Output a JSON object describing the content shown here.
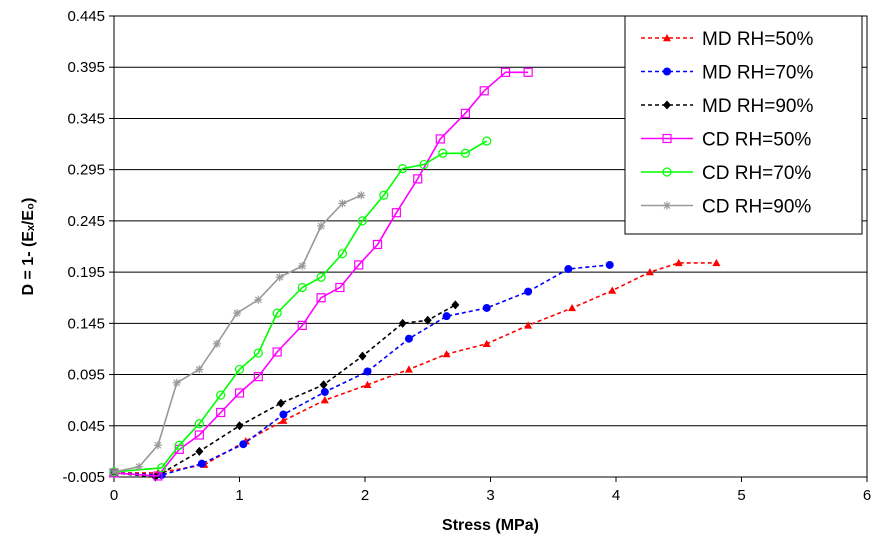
{
  "chart_data": {
    "type": "line",
    "xlabel": "Stress (MPa)",
    "ylabel": "D = 1- (Eₓ/E₀)",
    "xlim": [
      0,
      6
    ],
    "ylim": [
      -0.005,
      0.445
    ],
    "x_ticks": [
      "0",
      "1",
      "2",
      "3",
      "4",
      "5",
      "6"
    ],
    "y_ticks": [
      "-0.005",
      "0.045",
      "0.095",
      "0.145",
      "0.195",
      "0.245",
      "0.295",
      "0.345",
      "0.395",
      "0.445"
    ],
    "grid": "horizontal",
    "legend_position": "top-right",
    "series": [
      {
        "name": "MD RH=50%",
        "color": "#ff0000",
        "marker": "triangle",
        "line": "dashed",
        "x": [
          0.0,
          0.35,
          0.72,
          1.05,
          1.35,
          1.68,
          2.02,
          2.35,
          2.65,
          2.97,
          3.3,
          3.65,
          3.97,
          4.27,
          4.5,
          4.8
        ],
        "y": [
          -0.001,
          -0.001,
          0.007,
          0.03,
          0.05,
          0.07,
          0.085,
          0.1,
          0.115,
          0.125,
          0.143,
          0.16,
          0.177,
          0.195,
          0.204,
          0.204
        ]
      },
      {
        "name": "MD RH=70%",
        "color": "#0000ff",
        "marker": "circle",
        "line": "dashed",
        "x": [
          0.0,
          0.38,
          0.7,
          1.03,
          1.35,
          1.68,
          2.02,
          2.35,
          2.65,
          2.97,
          3.3,
          3.62,
          3.95
        ],
        "y": [
          -0.001,
          -0.003,
          0.008,
          0.027,
          0.056,
          0.078,
          0.098,
          0.13,
          0.152,
          0.16,
          0.176,
          0.198,
          0.202
        ]
      },
      {
        "name": "MD RH=90%",
        "color": "#000000",
        "marker": "diamond",
        "line": "dashed",
        "x": [
          0.0,
          0.33,
          0.68,
          1.0,
          1.33,
          1.67,
          1.98,
          2.3,
          2.5,
          2.72
        ],
        "y": [
          -0.001,
          -0.005,
          0.02,
          0.045,
          0.067,
          0.085,
          0.113,
          0.145,
          0.148,
          0.163
        ]
      },
      {
        "name": "CD RH=50%",
        "color": "#ff00ff",
        "marker": "square",
        "line": "solid",
        "x": [
          0.0,
          0.35,
          0.52,
          0.68,
          0.85,
          1.0,
          1.15,
          1.3,
          1.5,
          1.65,
          1.8,
          1.95,
          2.1,
          2.25,
          2.42,
          2.6,
          2.8,
          2.95,
          3.12,
          3.3
        ],
        "y": [
          -0.001,
          -0.004,
          0.022,
          0.036,
          0.058,
          0.077,
          0.093,
          0.117,
          0.143,
          0.17,
          0.18,
          0.202,
          0.222,
          0.253,
          0.286,
          0.325,
          0.35,
          0.372,
          0.39,
          0.39
        ]
      },
      {
        "name": "CD RH=70%",
        "color": "#00ff00",
        "marker": "circle-open",
        "line": "solid",
        "x": [
          0.0,
          0.38,
          0.52,
          0.68,
          0.85,
          1.0,
          1.15,
          1.3,
          1.5,
          1.65,
          1.82,
          1.98,
          2.15,
          2.3,
          2.47,
          2.62,
          2.8,
          2.97
        ],
        "y": [
          0.0,
          0.004,
          0.026,
          0.047,
          0.075,
          0.1,
          0.116,
          0.155,
          0.18,
          0.19,
          0.213,
          0.245,
          0.27,
          0.296,
          0.3,
          0.311,
          0.311,
          0.323
        ]
      },
      {
        "name": "CD RH=90%",
        "color": "#999999",
        "marker": "star",
        "line": "solid",
        "x": [
          0.0,
          0.2,
          0.35,
          0.5,
          0.68,
          0.82,
          0.98,
          1.15,
          1.32,
          1.5,
          1.65,
          1.82,
          1.97
        ],
        "y": [
          0.0,
          0.005,
          0.026,
          0.087,
          0.1,
          0.125,
          0.155,
          0.168,
          0.19,
          0.201,
          0.24,
          0.262,
          0.27
        ]
      }
    ]
  }
}
